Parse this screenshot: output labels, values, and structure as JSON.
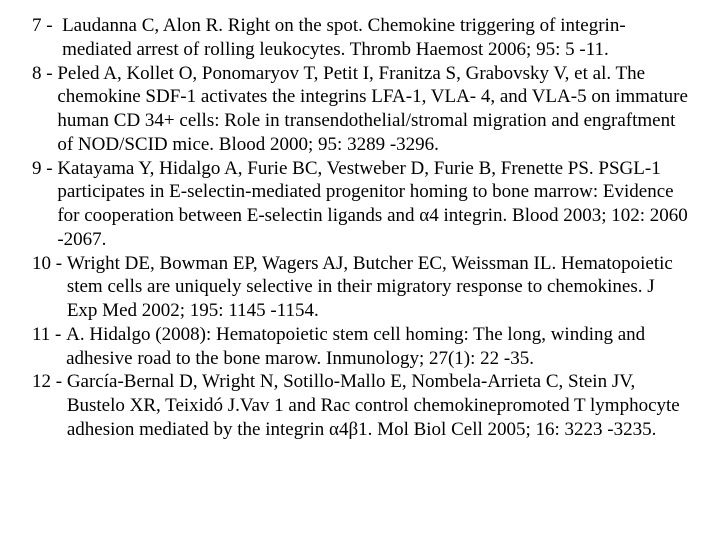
{
  "references": [
    {
      "num": "7 -  ",
      "text": "Laudanna C, Alon R. Right on the spot. Chemokine triggering of integrin-mediated arrest of rolling leukocytes. Thromb Haemost 2006; 95: 5 -11."
    },
    {
      "num": "8 - ",
      "text": "Peled A, Kollet O, Ponomaryov T, Petit I, Franitza S, Grabovsky V, et al. The chemokine SDF-1 activates the integrins LFA-1, VLA- 4, and VLA-5 on immature human CD 34+ cells: Role in transendothelial/stromal migration and engraftment of NOD/SCID mice. Blood 2000; 95: 3289 -3296."
    },
    {
      "num": "9 - ",
      "text": "Katayama Y, Hidalgo A, Furie BC, Vestweber D, Furie B, Frenette PS. PSGL-1 participates in E-selectin-mediated progenitor homing to bone marrow: Evidence for cooperation between E-selectin ligands and α4 integrin. Blood 2003; 102: 2060 -2067."
    },
    {
      "num": "10 - ",
      "text": "Wright DE, Bowman EP, Wagers AJ, Butcher EC, Weissman IL. Hematopoietic stem cells are uniquely selective in their migratory response to chemokines. J Exp Med 2002; 195: 1145 -1154."
    },
    {
      "num": "11 - ",
      "text": "A. Hidalgo (2008): Hematopoietic stem cell homing: The long, winding and adhesive road to the bone marow. Inmunology; 27(1): 22 -35."
    },
    {
      "num": "12 - ",
      "text": "García-Bernal D, Wright N, Sotillo-Mallo E, Nombela-Arrieta C, Stein JV, Bustelo XR, Teixidó J.Vav 1 and Rac control chemokinepromoted T lymphocyte adhesion mediated by the integrin α4β1. Mol Biol Cell 2005; 16: 3223 -3235."
    }
  ],
  "style": {
    "font_family": "Times New Roman",
    "font_size_pt": 14,
    "text_color": "#000000",
    "background_color": "#ffffff"
  }
}
